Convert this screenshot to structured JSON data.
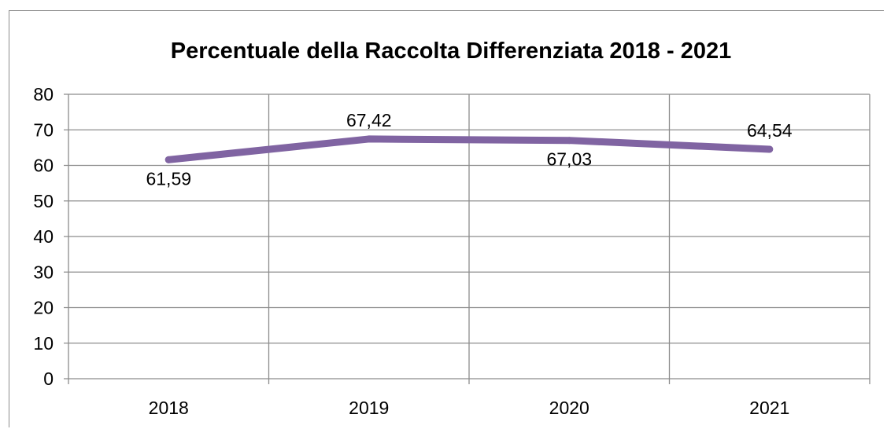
{
  "chart_data": {
    "type": "line",
    "title": "Percentuale della Raccolta Differenziata 2018 - 2021",
    "xlabel": "",
    "ylabel": "",
    "categories": [
      "2018",
      "2019",
      "2020",
      "2021"
    ],
    "series": [
      {
        "values": [
          61.59,
          67.42,
          67.03,
          64.54
        ],
        "color": "#8064a2"
      }
    ],
    "data_labels": [
      "61,59",
      "67,42",
      "67,03",
      "64,54"
    ],
    "data_label_positions": [
      "below",
      "above",
      "below",
      "above"
    ],
    "ylim": [
      0,
      80
    ],
    "yticks": [
      0,
      10,
      20,
      30,
      40,
      50,
      60,
      70,
      80
    ],
    "grid": "major horizontal and vertical",
    "legend": "none"
  }
}
